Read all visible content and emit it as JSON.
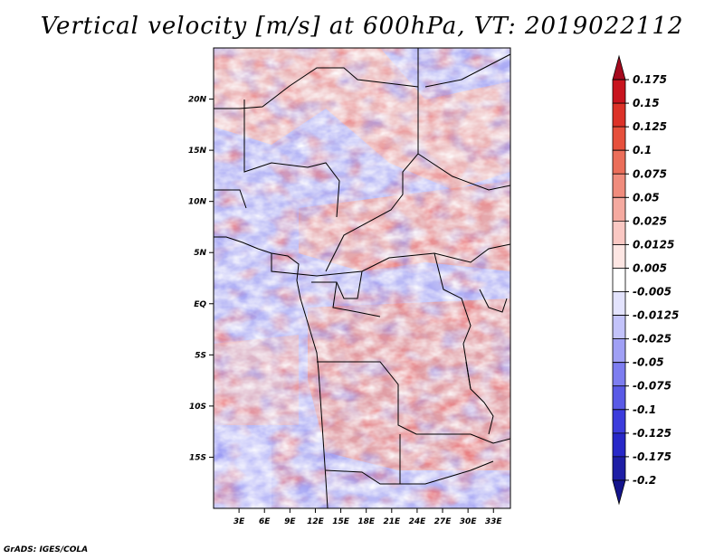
{
  "chart_data": {
    "type": "heatmap",
    "title": "Vertical velocity [m/s] at 600hPa, VT: 2019022112",
    "x_ticks": [
      "3E",
      "6E",
      "9E",
      "12E",
      "15E",
      "18E",
      "21E",
      "24E",
      "27E",
      "30E",
      "33E"
    ],
    "x_tick_values": [
      3,
      6,
      9,
      12,
      15,
      18,
      21,
      24,
      27,
      30,
      33
    ],
    "y_ticks": [
      "20N",
      "15N",
      "10N",
      "5N",
      "EQ",
      "5S",
      "10S",
      "15S"
    ],
    "y_tick_values": [
      20,
      15,
      10,
      5,
      0,
      -5,
      -10,
      -15
    ],
    "xlim": [
      0,
      35
    ],
    "ylim": [
      -20,
      25
    ],
    "colorbar": {
      "labels": [
        "0.175",
        "0.15",
        "0.125",
        "0.1",
        "0.075",
        "0.05",
        "0.025",
        "0.0125",
        "0.005",
        "-0.005",
        "-0.0125",
        "-0.025",
        "-0.05",
        "-0.075",
        "-0.1",
        "-0.125",
        "-0.175",
        "-0.2"
      ],
      "colors": [
        "#a50a1e",
        "#c8141e",
        "#dc3228",
        "#e6503c",
        "#eb6e5a",
        "#f08c7d",
        "#f5aaa0",
        "#fac8c3",
        "#fde6e3",
        "#ffffff",
        "#e3e3fd",
        "#c3c3fa",
        "#a0a0f5",
        "#7d7df0",
        "#5a5ae6",
        "#3c3cdc",
        "#2828c8",
        "#1e1ea5",
        "#14148c"
      ]
    },
    "credit": "GrADS: IGES/COLA"
  }
}
